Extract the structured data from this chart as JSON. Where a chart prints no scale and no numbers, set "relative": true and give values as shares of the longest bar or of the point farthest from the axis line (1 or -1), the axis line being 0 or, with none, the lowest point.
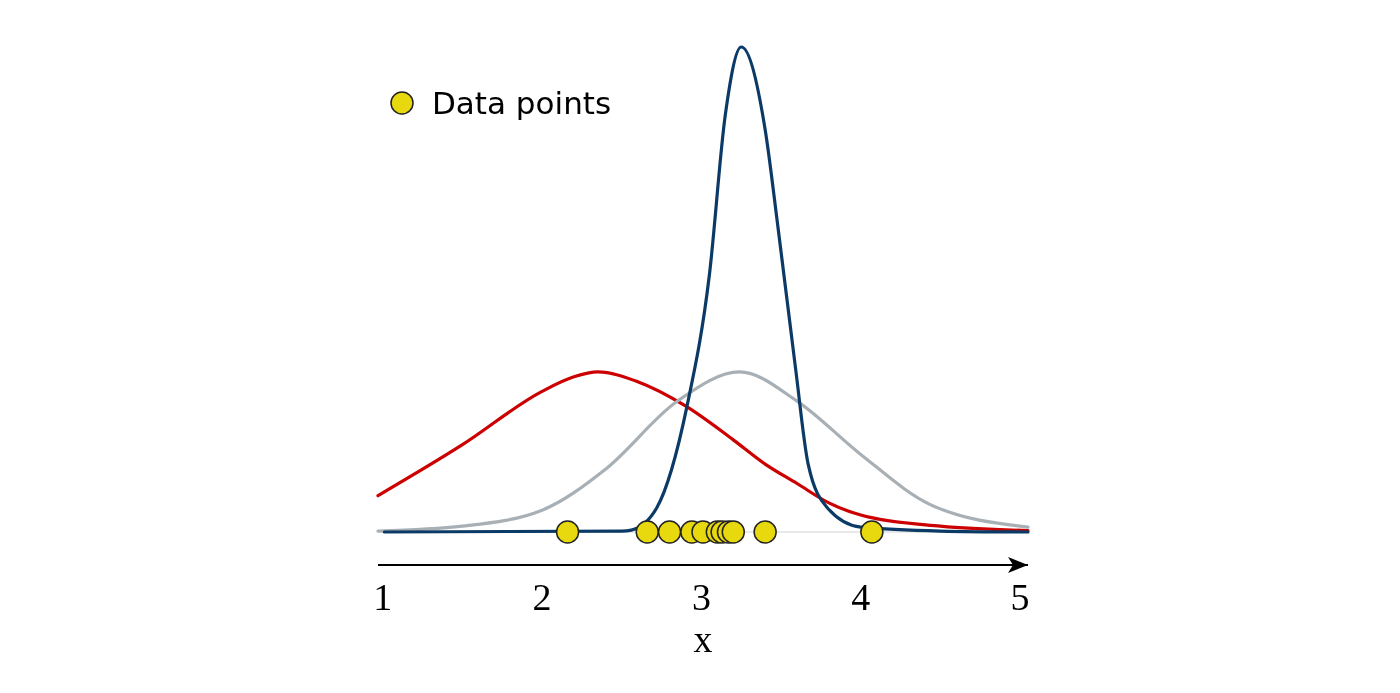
{
  "chart_data": {
    "type": "line",
    "relative": true,
    "xlabel": "x",
    "xlim": [
      0.97,
      5.05
    ],
    "xticks": [
      1,
      2,
      3,
      4,
      5
    ],
    "legend": "top left",
    "grid": false,
    "line_style": "solid",
    "series": [
      {
        "color": "#cc0000",
        "x": [
          0.97,
          1.5,
          2.0,
          2.2,
          2.35,
          2.6,
          2.9,
          3.2,
          3.4,
          3.6,
          3.8,
          4.0,
          4.5,
          5.05
        ],
        "values": [
          0.075,
          0.18,
          0.29,
          0.32,
          0.33,
          0.31,
          0.26,
          0.19,
          0.14,
          0.1,
          0.06,
          0.035,
          0.012,
          0.003
        ]
      },
      {
        "color": "#a9b0b5",
        "x": [
          0.97,
          1.5,
          2.0,
          2.4,
          2.85,
          3.24,
          3.6,
          4.0,
          4.44,
          5.05
        ],
        "values": [
          0.002,
          0.012,
          0.045,
          0.13,
          0.27,
          0.33,
          0.27,
          0.16,
          0.056,
          0.01
        ]
      },
      {
        "color": "#0b3a66",
        "x": [
          1.01,
          2.5,
          2.56,
          2.72,
          2.91,
          3.05,
          3.15,
          3.25,
          3.4,
          3.48,
          3.59,
          3.67,
          3.79,
          4.0,
          4.5,
          5.05
        ],
        "values": [
          0,
          0.002,
          0.004,
          0.05,
          0.26,
          0.53,
          0.86,
          1,
          0.83,
          0.63,
          0.34,
          0.14,
          0.05,
          0.01,
          0.002,
          0
        ]
      },
      {
        "type": "scatter",
        "name": "Data points",
        "color": "#e8d90f",
        "marker": "circle",
        "x": [
          2.16,
          2.66,
          2.8,
          2.94,
          3.01,
          3.1,
          3.13,
          3.17,
          3.2,
          3.4,
          4.07
        ],
        "values": [
          0,
          0,
          0,
          0,
          0,
          0,
          0,
          0,
          0,
          0,
          0
        ]
      }
    ]
  }
}
